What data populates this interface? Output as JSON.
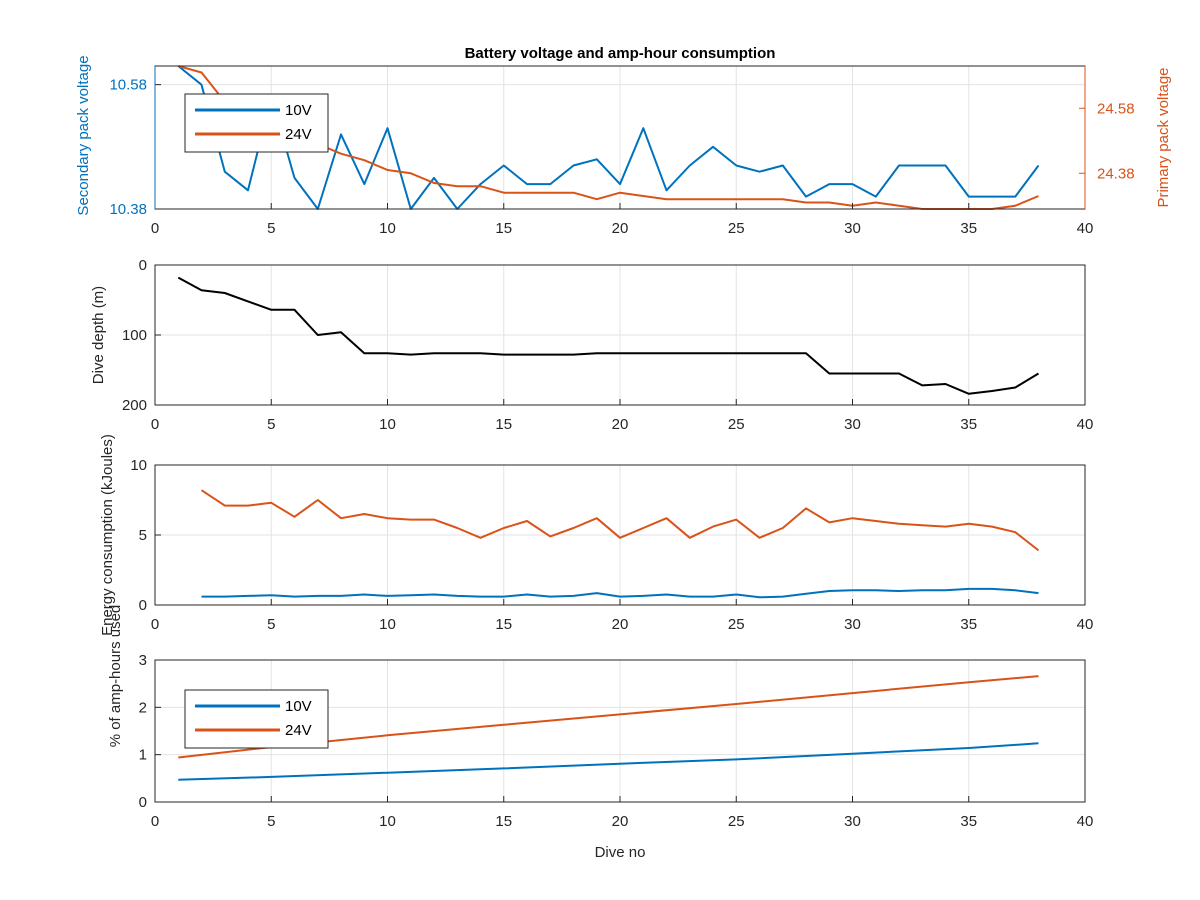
{
  "figure": {
    "title": "Battery voltage and amp-hour consumption",
    "xlabel": "Dive no"
  },
  "colors": {
    "blue": "#0072BD",
    "orange": "#D95319",
    "black": "#000000",
    "grid": "#e3e3e3",
    "axis": "#262626"
  },
  "chart_data": [
    {
      "type": "line",
      "title": "Battery voltage and amp-hour consumption",
      "xlabel": "",
      "ylabel_left": "Secondary pack voltage",
      "ylabel_right": "Primary pack voltage",
      "xlim": [
        0,
        40
      ],
      "xticks": [
        "0",
        "5",
        "10",
        "15",
        "20",
        "25",
        "30",
        "35",
        "40"
      ],
      "ylim_left": [
        10.38,
        10.61
      ],
      "yticks_left": [
        "10.38",
        "10.58"
      ],
      "ylim_right": [
        24.27,
        24.71
      ],
      "yticks_right": [
        "24.38",
        "24.58"
      ],
      "grid": true,
      "legend": {
        "placement": "top-left",
        "entries": [
          "10V",
          "24V"
        ]
      },
      "series": [
        {
          "name": "10V",
          "axis": "left",
          "color": "blue",
          "x": [
            1,
            2,
            3,
            4,
            5,
            6,
            7,
            8,
            9,
            10,
            11,
            12,
            13,
            14,
            15,
            16,
            17,
            18,
            19,
            20,
            21,
            22,
            23,
            24,
            25,
            26,
            27,
            28,
            29,
            30,
            31,
            32,
            33,
            34,
            35,
            36,
            37,
            38
          ],
          "y": [
            10.61,
            10.58,
            10.44,
            10.41,
            10.56,
            10.43,
            10.38,
            10.5,
            10.42,
            10.51,
            10.38,
            10.43,
            10.38,
            10.42,
            10.45,
            10.42,
            10.42,
            10.45,
            10.46,
            10.42,
            10.51,
            10.41,
            10.45,
            10.48,
            10.45,
            10.44,
            10.45,
            10.4,
            10.42,
            10.42,
            10.4,
            10.45,
            10.45,
            10.45,
            10.4,
            10.4,
            10.4,
            10.45
          ]
        },
        {
          "name": "24V",
          "axis": "right",
          "color": "orange",
          "x": [
            1,
            2,
            3,
            4,
            5,
            6,
            7,
            8,
            9,
            10,
            11,
            12,
            13,
            14,
            15,
            16,
            17,
            18,
            19,
            20,
            21,
            22,
            23,
            24,
            25,
            26,
            27,
            28,
            29,
            30,
            31,
            32,
            33,
            34,
            35,
            36,
            37,
            38
          ],
          "y": [
            24.71,
            24.69,
            24.6,
            24.53,
            24.51,
            24.49,
            24.47,
            24.44,
            24.42,
            24.39,
            24.38,
            24.35,
            24.34,
            24.34,
            24.32,
            24.32,
            24.32,
            24.32,
            24.3,
            24.32,
            24.31,
            24.3,
            24.3,
            24.3,
            24.3,
            24.3,
            24.3,
            24.29,
            24.29,
            24.28,
            24.29,
            24.28,
            24.27,
            24.27,
            24.27,
            24.27,
            24.28,
            24.31
          ]
        }
      ]
    },
    {
      "type": "line",
      "ylabel": "Dive depth (m)",
      "xlim": [
        0,
        40
      ],
      "xticks": [
        "0",
        "5",
        "10",
        "15",
        "20",
        "25",
        "30",
        "35",
        "40"
      ],
      "ylim": [
        0,
        200
      ],
      "y_reversed": true,
      "yticks": [
        "0",
        "100",
        "200"
      ],
      "grid": true,
      "series": [
        {
          "color": "black",
          "x": [
            1,
            2,
            3,
            4,
            5,
            6,
            7,
            8,
            9,
            10,
            11,
            12,
            13,
            14,
            15,
            16,
            17,
            18,
            19,
            20,
            21,
            22,
            23,
            24,
            25,
            26,
            27,
            28,
            29,
            30,
            31,
            32,
            33,
            34,
            35,
            36,
            37,
            38
          ],
          "y": [
            18,
            36,
            40,
            52,
            64,
            64,
            100,
            96,
            126,
            126,
            128,
            126,
            126,
            126,
            128,
            128,
            128,
            128,
            126,
            126,
            126,
            126,
            126,
            126,
            126,
            126,
            126,
            126,
            155,
            155,
            155,
            155,
            172,
            170,
            184,
            180,
            175,
            155
          ]
        }
      ]
    },
    {
      "type": "line",
      "ylabel": "Energy consumption (kJoules)",
      "xlim": [
        0,
        40
      ],
      "xticks": [
        "0",
        "5",
        "10",
        "15",
        "20",
        "25",
        "30",
        "35",
        "40"
      ],
      "ylim": [
        0,
        10
      ],
      "yticks": [
        "0",
        "5",
        "10"
      ],
      "grid": true,
      "series": [
        {
          "name": "10V",
          "color": "blue",
          "x": [
            2,
            3,
            4,
            5,
            6,
            7,
            8,
            9,
            10,
            11,
            12,
            13,
            14,
            15,
            16,
            17,
            18,
            19,
            20,
            21,
            22,
            23,
            24,
            25,
            26,
            27,
            28,
            29,
            30,
            31,
            32,
            33,
            34,
            35,
            36,
            37,
            38
          ],
          "y": [
            0.6,
            0.6,
            0.65,
            0.7,
            0.6,
            0.65,
            0.65,
            0.75,
            0.65,
            0.7,
            0.75,
            0.65,
            0.6,
            0.6,
            0.75,
            0.6,
            0.65,
            0.85,
            0.6,
            0.65,
            0.75,
            0.6,
            0.6,
            0.75,
            0.55,
            0.6,
            0.8,
            1.0,
            1.05,
            1.05,
            1.0,
            1.05,
            1.05,
            1.15,
            1.15,
            1.05,
            0.85
          ]
        },
        {
          "name": "24V",
          "color": "orange",
          "x": [
            2,
            3,
            4,
            5,
            6,
            7,
            8,
            9,
            10,
            11,
            12,
            13,
            14,
            15,
            16,
            17,
            18,
            19,
            20,
            21,
            22,
            23,
            24,
            25,
            26,
            27,
            28,
            29,
            30,
            31,
            32,
            33,
            34,
            35,
            36,
            37,
            38
          ],
          "y": [
            8.2,
            7.1,
            7.1,
            7.3,
            6.3,
            7.5,
            6.2,
            6.5,
            6.2,
            6.1,
            6.1,
            5.5,
            4.8,
            5.5,
            6.0,
            4.9,
            5.5,
            6.2,
            4.8,
            5.5,
            6.2,
            4.8,
            5.6,
            6.1,
            4.8,
            5.5,
            6.9,
            5.9,
            6.2,
            6.0,
            5.8,
            5.7,
            5.6,
            5.8,
            5.6,
            5.2,
            3.9
          ]
        }
      ]
    },
    {
      "type": "line",
      "xlabel": "Dive no",
      "ylabel": "% of amp-hours used",
      "xlim": [
        0,
        40
      ],
      "xticks": [
        "0",
        "5",
        "10",
        "15",
        "20",
        "25",
        "30",
        "35",
        "40"
      ],
      "ylim": [
        0,
        3
      ],
      "yticks": [
        "0",
        "1",
        "2",
        "3"
      ],
      "grid": true,
      "legend": {
        "placement": "bottom-left",
        "entries": [
          "10V",
          "24V"
        ]
      },
      "series": [
        {
          "name": "10V",
          "color": "blue",
          "x": [
            1,
            5,
            10,
            15,
            20,
            25,
            30,
            35,
            38
          ],
          "y": [
            0.47,
            0.53,
            0.62,
            0.71,
            0.81,
            0.9,
            1.02,
            1.14,
            1.24
          ]
        },
        {
          "name": "24V",
          "color": "orange",
          "x": [
            1,
            5,
            10,
            15,
            20,
            25,
            30,
            35,
            38
          ],
          "y": [
            0.94,
            1.16,
            1.41,
            1.63,
            1.85,
            2.07,
            2.3,
            2.53,
            2.66
          ]
        }
      ]
    }
  ]
}
